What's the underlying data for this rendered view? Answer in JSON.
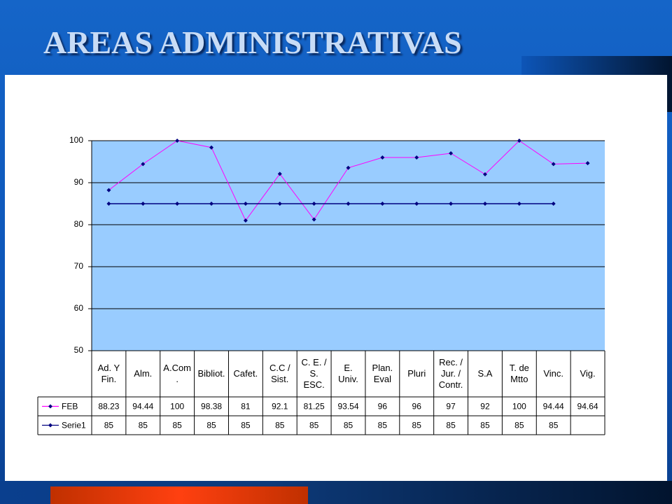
{
  "title": "AREAS ADMINISTRATIVAS",
  "chart_data": {
    "type": "line",
    "categories": [
      "Ad. Y\nFin.",
      "Alm.",
      "A.Com\n.",
      "Bibliot.",
      "Cafet.",
      "C.C /\nSist.",
      "C. E. /\nS.\nESC.",
      "E.\nUniv.",
      "Plan.\nEval",
      "Pluri",
      "Rec. /\nJur. /\nContr.",
      "S.A",
      "T. de\nMtto",
      "Vinc.",
      "Vig."
    ],
    "series": [
      {
        "name": "FEB",
        "color": "#ff00ff",
        "marker_color": "#000080",
        "values": [
          88.23,
          94.44,
          100,
          98.38,
          81,
          92.1,
          81.25,
          93.54,
          96,
          96,
          97,
          92,
          100,
          94.44,
          94.64
        ]
      },
      {
        "name": "Serie1",
        "color": "#000080",
        "marker_color": "#000080",
        "values": [
          85,
          85,
          85,
          85,
          85,
          85,
          85,
          85,
          85,
          85,
          85,
          85,
          85,
          85,
          null
        ]
      }
    ],
    "ylim": [
      50,
      100
    ],
    "yticks": [
      50,
      60,
      70,
      80,
      90,
      100
    ],
    "grid": true,
    "plot_color": "#99ccff"
  }
}
